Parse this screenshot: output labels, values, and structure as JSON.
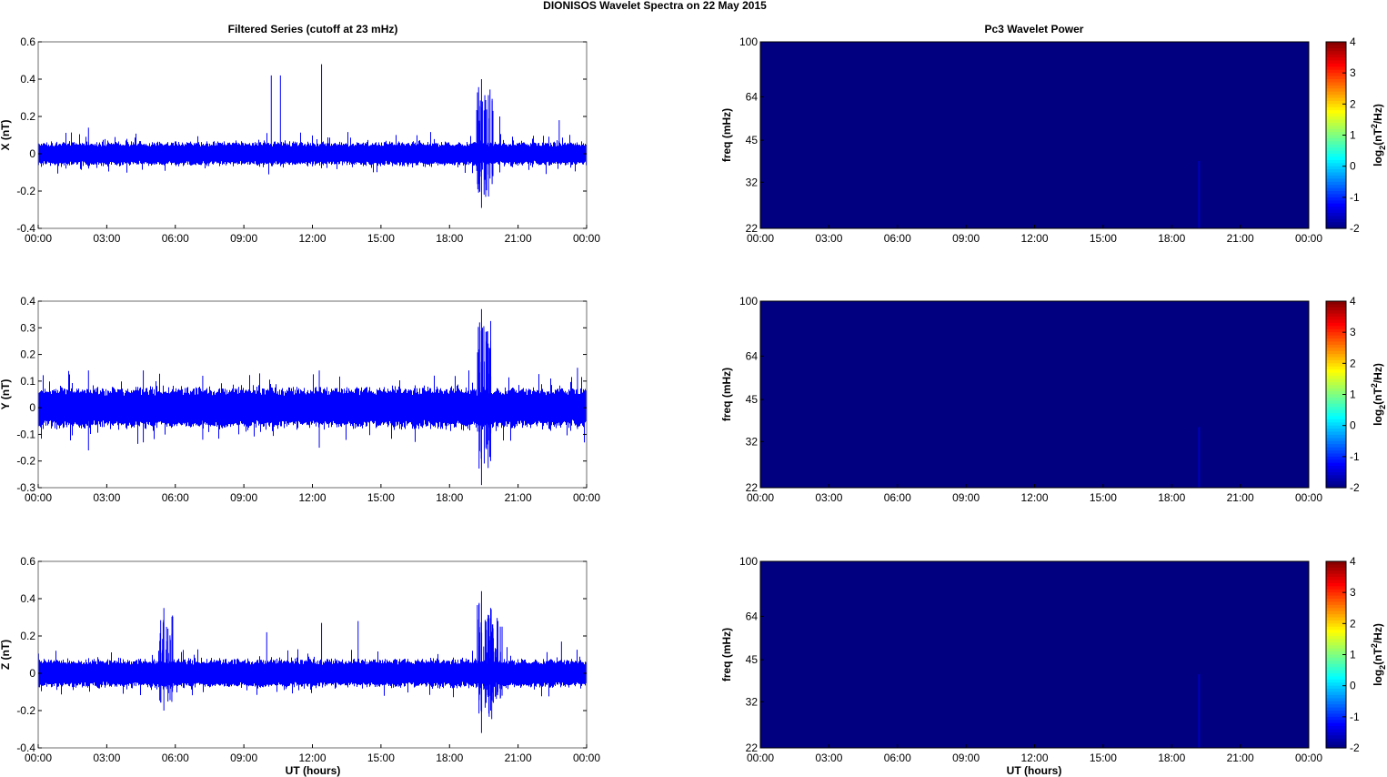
{
  "figure": {
    "suptitle": "DIONISOS Wavelet Spectra on 22 May       2015",
    "left_title": "Filtered Series (cutoff at 23 mHz)",
    "right_title": "Pc3 Wavelet Power",
    "xlabel": "UT (hours)",
    "series_color": "#0000ff",
    "background_color": "#00008f"
  },
  "chart_data": [
    {
      "type": "line",
      "component": "X",
      "ylabel": "X (nT)",
      "xlim": [
        "00:00",
        "24:00"
      ],
      "xticks": [
        "00:00",
        "03:00",
        "06:00",
        "09:00",
        "12:00",
        "15:00",
        "18:00",
        "21:00",
        "00:00"
      ],
      "ylim": [
        -0.4,
        0.6
      ],
      "yticks": [
        "-0.4",
        "-0.2",
        "0",
        "0.2",
        "0.4",
        "0.6"
      ],
      "grid": false,
      "noise_band": [
        -0.05,
        0.05
      ],
      "spikes": [
        {
          "t_hours": 2.2,
          "max": 0.14,
          "min": -0.05
        },
        {
          "t_hours": 10.2,
          "max": 0.42,
          "min": -0.02
        },
        {
          "t_hours": 10.6,
          "max": 0.42,
          "min": -0.03
        },
        {
          "t_hours": 12.4,
          "max": 0.48,
          "min": -0.02
        },
        {
          "t_hours": 19.4,
          "max": 0.4,
          "min": -0.29
        },
        {
          "t_hours": 19.9,
          "max": 0.23,
          "min": -0.12
        },
        {
          "t_hours": 20.2,
          "max": 0.2,
          "min": -0.1
        },
        {
          "t_hours": 22.8,
          "max": 0.18,
          "min": -0.05
        }
      ]
    },
    {
      "type": "line",
      "component": "Y",
      "ylabel": "Y (nT)",
      "xlim": [
        "00:00",
        "24:00"
      ],
      "xticks": [
        "00:00",
        "03:00",
        "06:00",
        "09:00",
        "12:00",
        "15:00",
        "18:00",
        "21:00",
        "00:00"
      ],
      "ylim": [
        -0.3,
        0.4
      ],
      "yticks": [
        "-0.3",
        "-0.2",
        "-0.1",
        "0",
        "0.1",
        "0.2",
        "0.3",
        "0.4"
      ],
      "grid": false,
      "noise_band": [
        -0.06,
        0.06
      ],
      "spikes": [
        {
          "t_hours": 2.2,
          "max": 0.14,
          "min": -0.16
        },
        {
          "t_hours": 4.6,
          "max": 0.14,
          "min": -0.13
        },
        {
          "t_hours": 7.2,
          "max": 0.12,
          "min": -0.12
        },
        {
          "t_hours": 12.3,
          "max": 0.14,
          "min": -0.15
        },
        {
          "t_hours": 19.4,
          "max": 0.37,
          "min": -0.29
        },
        {
          "t_hours": 19.8,
          "max": 0.25,
          "min": -0.2
        },
        {
          "t_hours": 23.6,
          "max": 0.15,
          "min": -0.08
        }
      ]
    },
    {
      "type": "line",
      "component": "Z",
      "ylabel": "Z (nT)",
      "xlim": [
        "00:00",
        "24:00"
      ],
      "xticks": [
        "00:00",
        "03:00",
        "06:00",
        "09:00",
        "12:00",
        "15:00",
        "18:00",
        "21:00",
        "00:00"
      ],
      "ylim": [
        -0.4,
        0.6
      ],
      "yticks": [
        "-0.4",
        "-0.2",
        "0",
        "0.2",
        "0.4",
        "0.6"
      ],
      "grid": false,
      "noise_band": [
        -0.06,
        0.06
      ],
      "spikes": [
        {
          "t_hours": 5.5,
          "max": 0.35,
          "min": -0.2
        },
        {
          "t_hours": 10.0,
          "max": 0.22,
          "min": -0.06
        },
        {
          "t_hours": 12.4,
          "max": 0.27,
          "min": -0.05
        },
        {
          "t_hours": 14.0,
          "max": 0.28,
          "min": -0.06
        },
        {
          "t_hours": 19.4,
          "max": 0.44,
          "min": -0.32
        },
        {
          "t_hours": 19.8,
          "max": 0.35,
          "min": -0.2
        },
        {
          "t_hours": 20.3,
          "max": 0.25,
          "min": -0.12
        },
        {
          "t_hours": 22.9,
          "max": 0.17,
          "min": -0.05
        }
      ]
    },
    {
      "type": "heatmap",
      "component": "X",
      "ylabel": "freq (mHz)",
      "xlim": [
        "00:00",
        "24:00"
      ],
      "xticks": [
        "00:00",
        "03:00",
        "06:00",
        "09:00",
        "12:00",
        "15:00",
        "18:00",
        "21:00",
        "00:00"
      ],
      "yscale": "log",
      "ylim": [
        22,
        100
      ],
      "yticks": [
        "22",
        "32",
        "45",
        "64",
        "100"
      ],
      "colorbar": {
        "label": "log2(nT^2/Hz)",
        "range": [
          -2,
          4
        ],
        "ticks": [
          "-2",
          "-1",
          "0",
          "1",
          "2",
          "3",
          "4"
        ],
        "colormap": "jet"
      },
      "value_floor": -2,
      "features": [
        {
          "t_hours": 19.2,
          "f_min": 22,
          "f_max": 38,
          "value": -1.6
        }
      ]
    },
    {
      "type": "heatmap",
      "component": "Y",
      "ylabel": "freq (mHz)",
      "xlim": [
        "00:00",
        "24:00"
      ],
      "xticks": [
        "00:00",
        "03:00",
        "06:00",
        "09:00",
        "12:00",
        "15:00",
        "18:00",
        "21:00",
        "00:00"
      ],
      "yscale": "log",
      "ylim": [
        22,
        100
      ],
      "yticks": [
        "22",
        "32",
        "45",
        "64",
        "100"
      ],
      "colorbar": {
        "label": "log2(nT^2/Hz)",
        "range": [
          -2,
          4
        ],
        "ticks": [
          "-2",
          "-1",
          "0",
          "1",
          "2",
          "3",
          "4"
        ],
        "colormap": "jet"
      },
      "value_floor": -2,
      "features": [
        {
          "t_hours": 19.2,
          "f_min": 22,
          "f_max": 36,
          "value": -1.6
        }
      ]
    },
    {
      "type": "heatmap",
      "component": "Z",
      "ylabel": "freq (mHz)",
      "xlim": [
        "00:00",
        "24:00"
      ],
      "xticks": [
        "00:00",
        "03:00",
        "06:00",
        "09:00",
        "12:00",
        "15:00",
        "18:00",
        "21:00",
        "00:00"
      ],
      "yscale": "log",
      "ylim": [
        22,
        100
      ],
      "yticks": [
        "22",
        "32",
        "45",
        "64",
        "100"
      ],
      "colorbar": {
        "label": "log2(nT^2/Hz)",
        "range": [
          -2,
          4
        ],
        "ticks": [
          "-2",
          "-1",
          "0",
          "1",
          "2",
          "3",
          "4"
        ],
        "colormap": "jet"
      },
      "value_floor": -2,
      "features": [
        {
          "t_hours": 19.2,
          "f_min": 22,
          "f_max": 40,
          "value": -1.6
        }
      ]
    }
  ]
}
